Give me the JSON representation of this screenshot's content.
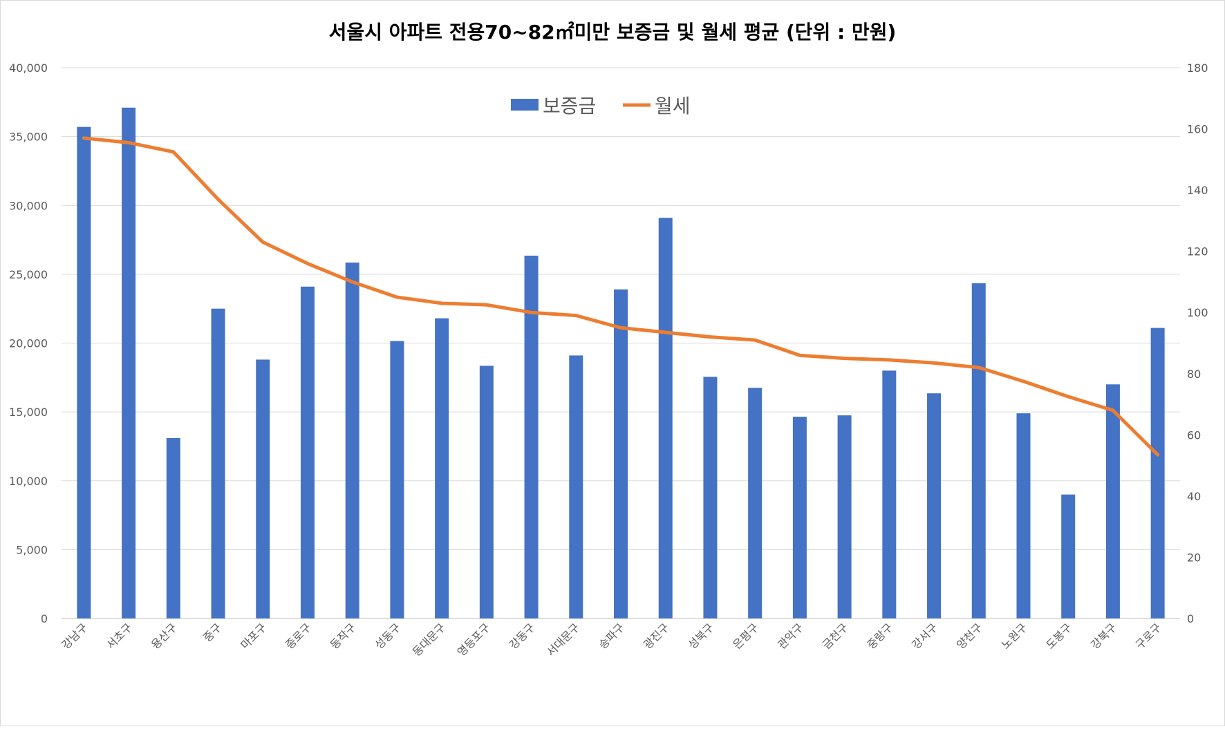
{
  "chart_data": {
    "type": "bar",
    "title": "서울시 아파트 전용70~82㎡미만 보증금 및 월세 평균 (단위 : 만원)",
    "categories": [
      "강남구",
      "서초구",
      "용산구",
      "중구",
      "마포구",
      "종로구",
      "동작구",
      "성동구",
      "동대문구",
      "영등포구",
      "강동구",
      "서대문구",
      "송파구",
      "광진구",
      "성북구",
      "은평구",
      "관악구",
      "금천구",
      "중랑구",
      "강서구",
      "양천구",
      "노원구",
      "도봉구",
      "강북구",
      "구로구"
    ],
    "series": [
      {
        "name": "보증금",
        "type": "bar",
        "axis": "left",
        "color": "#4472c4",
        "values": [
          35700,
          37100,
          13100,
          22500,
          18800,
          24100,
          25850,
          20150,
          21800,
          18350,
          26350,
          19100,
          23900,
          29100,
          17550,
          16750,
          14650,
          14750,
          18000,
          16350,
          24350,
          14900,
          9000,
          17000,
          21100
        ]
      },
      {
        "name": "월세",
        "type": "line",
        "axis": "right",
        "color": "#ed7d31",
        "values": [
          157,
          155.5,
          152.5,
          137,
          123,
          116,
          110,
          105,
          103,
          102.5,
          100,
          99,
          95,
          93.5,
          92,
          91,
          86,
          85,
          84.5,
          83.5,
          82,
          77.5,
          72.5,
          68,
          53.5
        ]
      }
    ],
    "y_left": {
      "min": 0,
      "max": 40000,
      "ticks": [
        "0",
        "5,000",
        "10,000",
        "15,000",
        "20,000",
        "25,000",
        "30,000",
        "35,000",
        "40,000"
      ]
    },
    "y_right": {
      "min": 0,
      "max": 180,
      "ticks": [
        "0",
        "20",
        "40",
        "60",
        "80",
        "100",
        "120",
        "140",
        "160",
        "180"
      ]
    },
    "grid": true,
    "legend_position": "top-center"
  }
}
